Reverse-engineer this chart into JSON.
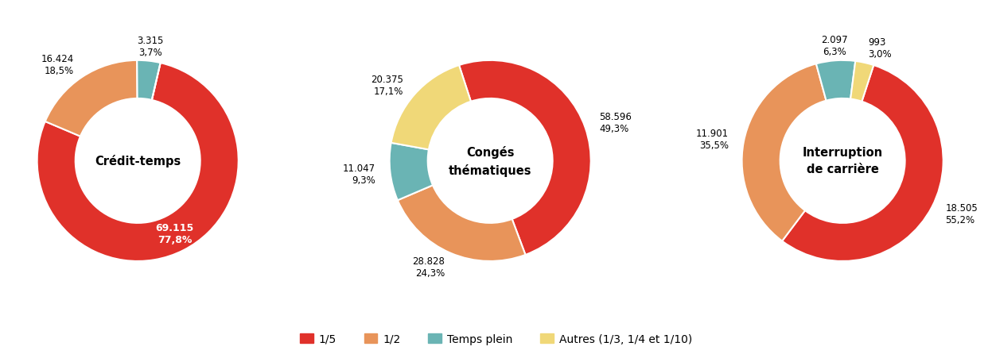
{
  "charts": [
    {
      "title_lines": [
        "Crédit-temps"
      ],
      "values": [
        69115,
        16424,
        3315,
        0
      ],
      "percentages": [
        "77,8%",
        "18,5%",
        "3,7%",
        ""
      ],
      "labels": [
        "69.115",
        "16.424",
        "3.315",
        ""
      ],
      "inside_label": [
        true,
        false,
        false,
        false
      ],
      "start_angle": 77
    },
    {
      "title_lines": [
        "Congés",
        "thématiques"
      ],
      "values": [
        58596,
        28828,
        11047,
        20375
      ],
      "percentages": [
        "49,3%",
        "24,3%",
        "9,3%",
        "17,1%"
      ],
      "labels": [
        "58.596",
        "28.828",
        "11.047",
        "20.375"
      ],
      "inside_label": [
        false,
        false,
        false,
        false
      ],
      "start_angle": 108
    },
    {
      "title_lines": [
        "Interruption",
        "de carrière"
      ],
      "values": [
        18505,
        11901,
        2097,
        993
      ],
      "percentages": [
        "55,2%",
        "35,5%",
        "6,3%",
        "3,0%"
      ],
      "labels": [
        "18.505",
        "11.901",
        "2.097",
        "993"
      ],
      "inside_label": [
        false,
        false,
        false,
        false
      ],
      "start_angle": 72
    }
  ],
  "slice_order": [
    0,
    1,
    2,
    3
  ],
  "colors": [
    "#e0312a",
    "#e8945a",
    "#6ab4b4",
    "#f0d878"
  ],
  "legend_labels": [
    "1/5",
    "1/2",
    "Temps plein",
    "Autres (1/3, 1/4 et 1/10)"
  ],
  "background_color": "#ffffff",
  "donut_width": 0.38
}
